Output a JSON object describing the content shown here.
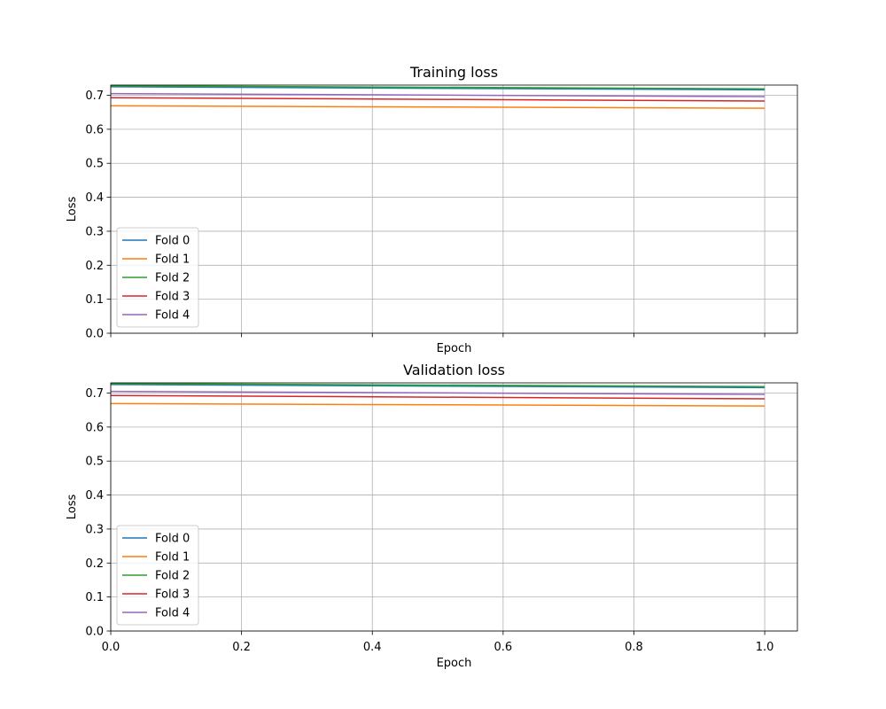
{
  "chart_data": [
    {
      "type": "line",
      "title": "Training loss",
      "xlabel": "Epoch",
      "ylabel": "Loss",
      "xlim": [
        0,
        1.05
      ],
      "ylim": [
        0,
        0.73
      ],
      "xticks": [
        0.0,
        0.2,
        0.4,
        0.6,
        0.8,
        1.0
      ],
      "xtick_labels_visible": false,
      "yticks": [
        0.0,
        0.1,
        0.2,
        0.3,
        0.4,
        0.5,
        0.6,
        0.7
      ],
      "ytick_labels": [
        "0.0",
        "0.1",
        "0.2",
        "0.3",
        "0.4",
        "0.5",
        "0.6",
        "0.7"
      ],
      "grid": true,
      "legend": "lower-left",
      "x": [
        0,
        1
      ],
      "series": [
        {
          "name": "Fold 0",
          "color": "#1f77b4",
          "values": [
            0.725,
            0.716
          ]
        },
        {
          "name": "Fold 1",
          "color": "#ff7f0e",
          "values": [
            0.669,
            0.662
          ]
        },
        {
          "name": "Fold 2",
          "color": "#2ca02c",
          "values": [
            0.728,
            0.719
          ]
        },
        {
          "name": "Fold 3",
          "color": "#d62728",
          "values": [
            0.693,
            0.683
          ]
        },
        {
          "name": "Fold 4",
          "color": "#9467bd",
          "values": [
            0.705,
            0.696
          ]
        }
      ]
    },
    {
      "type": "line",
      "title": "Validation loss",
      "xlabel": "Epoch",
      "ylabel": "Loss",
      "xlim": [
        0,
        1.05
      ],
      "ylim": [
        0,
        0.73
      ],
      "xticks": [
        0.0,
        0.2,
        0.4,
        0.6,
        0.8,
        1.0
      ],
      "xtick_labels": [
        "0.0",
        "0.2",
        "0.4",
        "0.6",
        "0.8",
        "1.0"
      ],
      "xtick_labels_visible": true,
      "yticks": [
        0.0,
        0.1,
        0.2,
        0.3,
        0.4,
        0.5,
        0.6,
        0.7
      ],
      "ytick_labels": [
        "0.0",
        "0.1",
        "0.2",
        "0.3",
        "0.4",
        "0.5",
        "0.6",
        "0.7"
      ],
      "grid": true,
      "legend": "lower-left",
      "x": [
        0,
        1
      ],
      "series": [
        {
          "name": "Fold 0",
          "color": "#1f77b4",
          "values": [
            0.725,
            0.716
          ]
        },
        {
          "name": "Fold 1",
          "color": "#ff7f0e",
          "values": [
            0.669,
            0.662
          ]
        },
        {
          "name": "Fold 2",
          "color": "#2ca02c",
          "values": [
            0.728,
            0.719
          ]
        },
        {
          "name": "Fold 3",
          "color": "#d62728",
          "values": [
            0.693,
            0.683
          ]
        },
        {
          "name": "Fold 4",
          "color": "#9467bd",
          "values": [
            0.705,
            0.696
          ]
        }
      ]
    }
  ]
}
